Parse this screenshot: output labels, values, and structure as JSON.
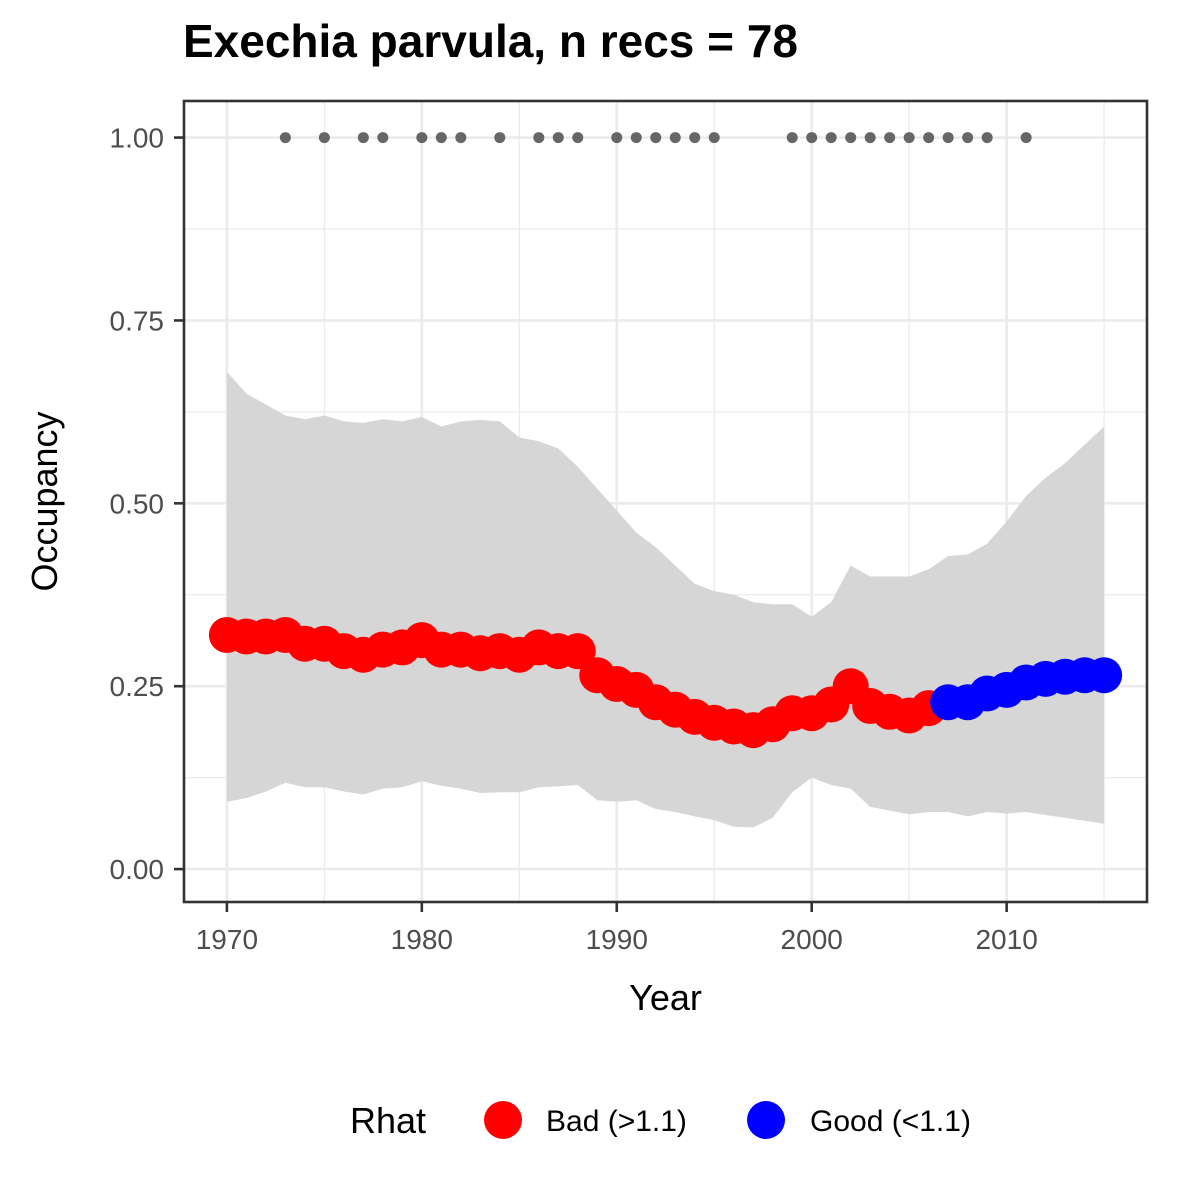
{
  "chart_data": {
    "type": "line",
    "title": "Exechia parvula, n recs = 78",
    "xlabel": "Year",
    "ylabel": "Occupancy",
    "xlim": [
      1967.8,
      2017.2
    ],
    "ylim": [
      -0.045,
      1.05
    ],
    "x_ticks": [
      1970,
      1980,
      1990,
      2000,
      2010
    ],
    "x_tick_labels": [
      "1970",
      "1980",
      "1990",
      "2000",
      "2010"
    ],
    "y_ticks": [
      0,
      0.25,
      0.5,
      0.75,
      1.0
    ],
    "y_tick_labels": [
      "0.00",
      "0.25",
      "0.50",
      "0.75",
      "1.00"
    ],
    "grid": true,
    "legend_title": "Rhat",
    "legend_position": "bottom",
    "series": [
      {
        "name": "Occupancy",
        "x": [
          1970,
          1971,
          1972,
          1973,
          1974,
          1975,
          1976,
          1977,
          1978,
          1979,
          1980,
          1981,
          1982,
          1983,
          1984,
          1985,
          1986,
          1987,
          1988,
          1989,
          1990,
          1991,
          1992,
          1993,
          1994,
          1995,
          1996,
          1997,
          1998,
          1999,
          2000,
          2001,
          2002,
          2003,
          2004,
          2005,
          2006,
          2007,
          2008,
          2009,
          2010,
          2011,
          2012,
          2013,
          2014,
          2015
        ],
        "y": [
          0.32,
          0.318,
          0.318,
          0.32,
          0.308,
          0.308,
          0.298,
          0.293,
          0.3,
          0.303,
          0.313,
          0.3,
          0.3,
          0.295,
          0.298,
          0.293,
          0.303,
          0.298,
          0.298,
          0.265,
          0.253,
          0.245,
          0.228,
          0.218,
          0.208,
          0.2,
          0.195,
          0.19,
          0.198,
          0.213,
          0.213,
          0.225,
          0.25,
          0.223,
          0.215,
          0.21,
          0.22,
          0.228,
          0.228,
          0.24,
          0.245,
          0.255,
          0.26,
          0.263,
          0.265,
          0.265
        ],
        "rhat": [
          "Bad",
          "Bad",
          "Bad",
          "Bad",
          "Bad",
          "Bad",
          "Bad",
          "Bad",
          "Bad",
          "Bad",
          "Bad",
          "Bad",
          "Bad",
          "Bad",
          "Bad",
          "Bad",
          "Bad",
          "Bad",
          "Bad",
          "Bad",
          "Bad",
          "Bad",
          "Bad",
          "Bad",
          "Bad",
          "Bad",
          "Bad",
          "Bad",
          "Bad",
          "Bad",
          "Bad",
          "Bad",
          "Bad",
          "Bad",
          "Bad",
          "Bad",
          "Bad",
          "Good",
          "Good",
          "Good",
          "Good",
          "Good",
          "Good",
          "Good",
          "Good",
          "Good"
        ],
        "lower": [
          0.092,
          0.097,
          0.106,
          0.118,
          0.112,
          0.112,
          0.106,
          0.102,
          0.11,
          0.112,
          0.12,
          0.114,
          0.11,
          0.104,
          0.105,
          0.105,
          0.112,
          0.113,
          0.115,
          0.094,
          0.092,
          0.094,
          0.082,
          0.078,
          0.072,
          0.067,
          0.058,
          0.057,
          0.07,
          0.105,
          0.125,
          0.115,
          0.11,
          0.085,
          0.08,
          0.075,
          0.078,
          0.078,
          0.072,
          0.078,
          0.076,
          0.078,
          0.074,
          0.07,
          0.066,
          0.062
        ],
        "upper": [
          0.68,
          0.65,
          0.635,
          0.62,
          0.615,
          0.62,
          0.612,
          0.61,
          0.615,
          0.612,
          0.618,
          0.605,
          0.612,
          0.614,
          0.612,
          0.59,
          0.585,
          0.575,
          0.55,
          0.52,
          0.49,
          0.46,
          0.44,
          0.415,
          0.39,
          0.38,
          0.375,
          0.365,
          0.362,
          0.362,
          0.345,
          0.365,
          0.415,
          0.4,
          0.4,
          0.4,
          0.41,
          0.428,
          0.43,
          0.445,
          0.475,
          0.51,
          0.535,
          0.555,
          0.58,
          0.605
        ]
      },
      {
        "name": "Records",
        "x": [
          1973,
          1975,
          1977,
          1978,
          1980,
          1981,
          1982,
          1984,
          1986,
          1987,
          1988,
          1990,
          1991,
          1992,
          1993,
          1994,
          1995,
          1999,
          2000,
          2001,
          2002,
          2003,
          2004,
          2005,
          2006,
          2007,
          2008,
          2009,
          2011
        ],
        "y": [
          1,
          1,
          1,
          1,
          1,
          1,
          1,
          1,
          1,
          1,
          1,
          1,
          1,
          1,
          1,
          1,
          1,
          1,
          1,
          1,
          1,
          1,
          1,
          1,
          1,
          1,
          1,
          1,
          1
        ]
      }
    ],
    "legend": [
      {
        "label": "Bad (>1.1)",
        "color": "#ff0000"
      },
      {
        "label": "Good (<1.1)",
        "color": "#0000ff"
      }
    ],
    "colors": {
      "bad": "#ff0000",
      "good": "#0000ff",
      "ribbon": "#d6d6d6",
      "records": "#666666",
      "grid": "#ebebeb",
      "panel_border": "#333333"
    }
  }
}
